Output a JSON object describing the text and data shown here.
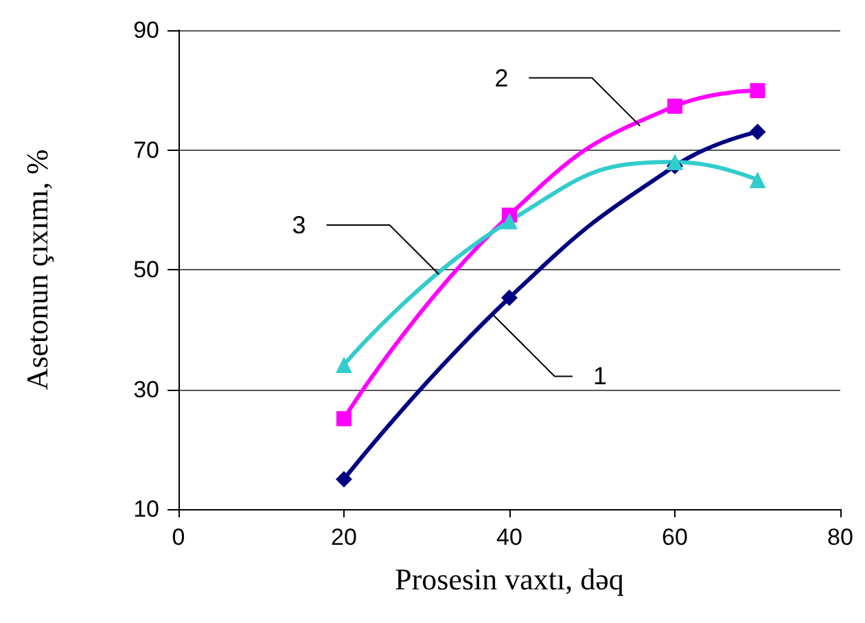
{
  "chart_data": {
    "type": "line",
    "xlabel": "Prosesin vaxtı, dəq",
    "ylabel": "Asetonun çıxımı, %",
    "x": [
      20,
      40,
      60,
      70
    ],
    "series": [
      {
        "color": "#000080",
        "marker": "diamond",
        "values": [
          15.0,
          45.3,
          67.3,
          73.0
        ]
      },
      {
        "color": "#ff00ff",
        "marker": "square",
        "values": [
          25.1,
          59.1,
          77.3,
          79.9
        ]
      },
      {
        "color": "#33cccc",
        "marker": "triangle",
        "values": [
          34.1,
          58.1,
          68.0,
          65.0
        ]
      }
    ],
    "xlim": [
      0,
      80
    ],
    "xticks": [
      0,
      20,
      40,
      60,
      80
    ],
    "ylim": [
      10,
      90
    ],
    "yticks": [
      10,
      30,
      50,
      70,
      90
    ],
    "grid": "y",
    "legend": false,
    "line_style": "solid",
    "annotations": [
      {
        "text": "1",
        "x": 38,
        "y": 42.5
      },
      {
        "text": "2",
        "x": 55.8,
        "y": 74
      },
      {
        "text": "3",
        "x": 31.5,
        "y": 49.2
      }
    ]
  }
}
